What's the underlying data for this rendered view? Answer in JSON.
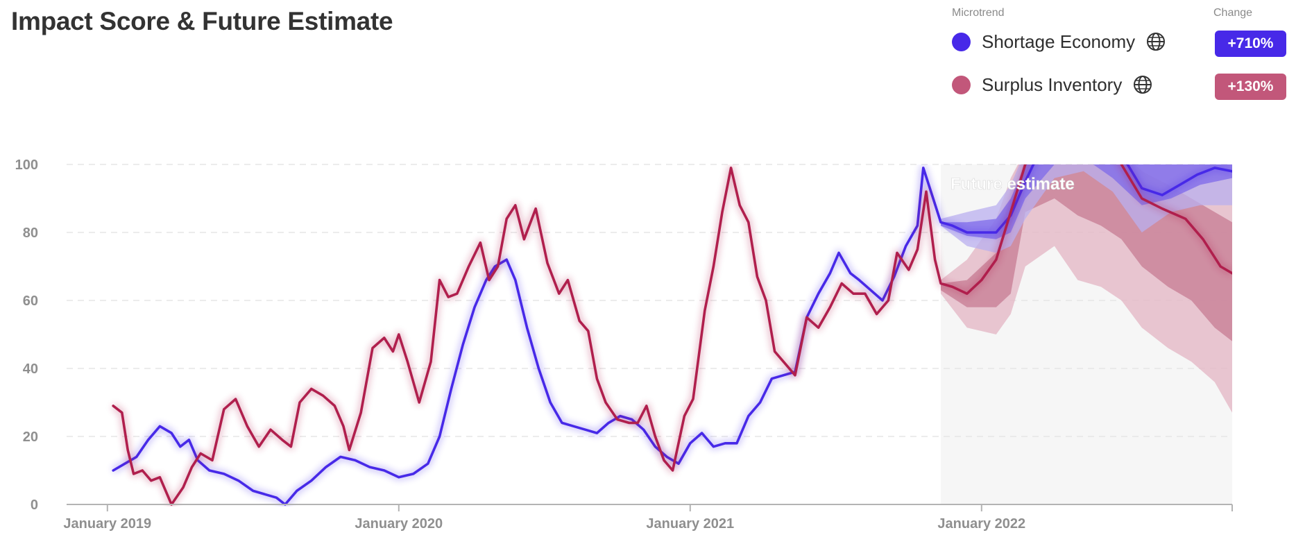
{
  "title": "Impact Score & Future Estimate",
  "legend": {
    "microtrend_header": "Microtrend",
    "change_header": "Change",
    "items": [
      {
        "label": "Shortage Economy",
        "change": "+710%",
        "color": "#4729e8",
        "badge_color": "#4729e8",
        "icon": "globe-icon"
      },
      {
        "label": "Surplus Inventory",
        "change": "+130%",
        "color": "#c2577a",
        "badge_color": "#c2577a",
        "icon": "globe-icon"
      }
    ]
  },
  "chart_data": {
    "type": "line",
    "title": "Impact Score & Future Estimate",
    "xlabel": "",
    "ylabel": "",
    "ylim": [
      0,
      100
    ],
    "yticks": [
      0,
      20,
      40,
      60,
      80,
      100
    ],
    "xticks": [
      {
        "label": "January 2019",
        "t": 2019.0
      },
      {
        "label": "January 2020",
        "t": 2020.0
      },
      {
        "label": "January 2021",
        "t": 2021.0
      },
      {
        "label": "January 2022",
        "t": 2022.0
      }
    ],
    "xlim": [
      2018.86,
      2022.86
    ],
    "grid": "horizontal dashed",
    "future_estimate": {
      "label": "Future estimate",
      "start": 2021.86,
      "end": 2022.86
    },
    "series": [
      {
        "name": "Shortage Economy",
        "color": "#4729e8",
        "points": [
          [
            2019.02,
            10
          ],
          [
            2019.06,
            12
          ],
          [
            2019.1,
            14
          ],
          [
            2019.14,
            19
          ],
          [
            2019.18,
            23
          ],
          [
            2019.22,
            21
          ],
          [
            2019.25,
            17
          ],
          [
            2019.28,
            19
          ],
          [
            2019.31,
            13
          ],
          [
            2019.35,
            10
          ],
          [
            2019.4,
            9
          ],
          [
            2019.45,
            7
          ],
          [
            2019.5,
            4
          ],
          [
            2019.54,
            3
          ],
          [
            2019.58,
            2
          ],
          [
            2019.61,
            0
          ],
          [
            2019.65,
            4
          ],
          [
            2019.7,
            7
          ],
          [
            2019.75,
            11
          ],
          [
            2019.8,
            14
          ],
          [
            2019.85,
            13
          ],
          [
            2019.9,
            11
          ],
          [
            2019.95,
            10
          ],
          [
            2020.0,
            8
          ],
          [
            2020.05,
            9
          ],
          [
            2020.1,
            12
          ],
          [
            2020.14,
            20
          ],
          [
            2020.18,
            34
          ],
          [
            2020.22,
            47
          ],
          [
            2020.26,
            58
          ],
          [
            2020.3,
            66
          ],
          [
            2020.33,
            70
          ],
          [
            2020.37,
            72
          ],
          [
            2020.4,
            66
          ],
          [
            2020.44,
            52
          ],
          [
            2020.48,
            40
          ],
          [
            2020.52,
            30
          ],
          [
            2020.56,
            24
          ],
          [
            2020.6,
            23
          ],
          [
            2020.64,
            22
          ],
          [
            2020.68,
            21
          ],
          [
            2020.72,
            24
          ],
          [
            2020.76,
            26
          ],
          [
            2020.8,
            25
          ],
          [
            2020.84,
            22
          ],
          [
            2020.88,
            17
          ],
          [
            2020.92,
            14
          ],
          [
            2020.96,
            12
          ],
          [
            2021.0,
            18
          ],
          [
            2021.04,
            21
          ],
          [
            2021.08,
            17
          ],
          [
            2021.12,
            18
          ],
          [
            2021.16,
            18
          ],
          [
            2021.2,
            26
          ],
          [
            2021.24,
            30
          ],
          [
            2021.28,
            37
          ],
          [
            2021.32,
            38
          ],
          [
            2021.36,
            39
          ],
          [
            2021.4,
            55
          ],
          [
            2021.44,
            62
          ],
          [
            2021.48,
            68
          ],
          [
            2021.51,
            74
          ],
          [
            2021.55,
            68
          ],
          [
            2021.58,
            66
          ],
          [
            2021.62,
            63
          ],
          [
            2021.66,
            60
          ],
          [
            2021.7,
            67
          ],
          [
            2021.74,
            76
          ],
          [
            2021.78,
            82
          ],
          [
            2021.8,
            99
          ],
          [
            2021.83,
            91
          ],
          [
            2021.86,
            83
          ],
          [
            2021.9,
            82
          ],
          [
            2021.95,
            80
          ],
          [
            2022.0,
            80
          ],
          [
            2022.05,
            80
          ],
          [
            2022.1,
            85
          ],
          [
            2022.15,
            95
          ],
          [
            2022.2,
            104
          ],
          [
            2022.3,
            105
          ],
          [
            2022.4,
            106
          ],
          [
            2022.48,
            103
          ],
          [
            2022.55,
            93
          ],
          [
            2022.62,
            91
          ],
          [
            2022.68,
            94
          ],
          [
            2022.74,
            97
          ],
          [
            2022.8,
            99
          ],
          [
            2022.86,
            98
          ]
        ]
      },
      {
        "name": "Surplus Inventory",
        "color": "#b01f4d",
        "points": [
          [
            2019.02,
            29
          ],
          [
            2019.05,
            27
          ],
          [
            2019.07,
            16
          ],
          [
            2019.09,
            9
          ],
          [
            2019.12,
            10
          ],
          [
            2019.15,
            7
          ],
          [
            2019.18,
            8
          ],
          [
            2019.22,
            0
          ],
          [
            2019.26,
            5
          ],
          [
            2019.29,
            11
          ],
          [
            2019.32,
            15
          ],
          [
            2019.36,
            13
          ],
          [
            2019.4,
            28
          ],
          [
            2019.44,
            31
          ],
          [
            2019.48,
            23
          ],
          [
            2019.52,
            17
          ],
          [
            2019.56,
            22
          ],
          [
            2019.6,
            19
          ],
          [
            2019.63,
            17
          ],
          [
            2019.66,
            30
          ],
          [
            2019.7,
            34
          ],
          [
            2019.74,
            32
          ],
          [
            2019.78,
            29
          ],
          [
            2019.81,
            23
          ],
          [
            2019.83,
            16
          ],
          [
            2019.87,
            27
          ],
          [
            2019.91,
            46
          ],
          [
            2019.95,
            49
          ],
          [
            2019.98,
            45
          ],
          [
            2020.0,
            50
          ],
          [
            2020.03,
            42
          ],
          [
            2020.07,
            30
          ],
          [
            2020.11,
            42
          ],
          [
            2020.14,
            66
          ],
          [
            2020.17,
            61
          ],
          [
            2020.2,
            62
          ],
          [
            2020.24,
            70
          ],
          [
            2020.28,
            77
          ],
          [
            2020.31,
            66
          ],
          [
            2020.34,
            70
          ],
          [
            2020.37,
            84
          ],
          [
            2020.4,
            88
          ],
          [
            2020.43,
            78
          ],
          [
            2020.47,
            87
          ],
          [
            2020.51,
            71
          ],
          [
            2020.55,
            62
          ],
          [
            2020.58,
            66
          ],
          [
            2020.62,
            54
          ],
          [
            2020.65,
            51
          ],
          [
            2020.68,
            37
          ],
          [
            2020.71,
            30
          ],
          [
            2020.75,
            25
          ],
          [
            2020.79,
            24
          ],
          [
            2020.82,
            24
          ],
          [
            2020.85,
            29
          ],
          [
            2020.88,
            20
          ],
          [
            2020.91,
            13
          ],
          [
            2020.94,
            10
          ],
          [
            2020.98,
            26
          ],
          [
            2021.01,
            31
          ],
          [
            2021.05,
            57
          ],
          [
            2021.08,
            70
          ],
          [
            2021.11,
            86
          ],
          [
            2021.14,
            99
          ],
          [
            2021.17,
            88
          ],
          [
            2021.2,
            83
          ],
          [
            2021.23,
            67
          ],
          [
            2021.26,
            60
          ],
          [
            2021.29,
            45
          ],
          [
            2021.33,
            41
          ],
          [
            2021.36,
            38
          ],
          [
            2021.4,
            55
          ],
          [
            2021.44,
            52
          ],
          [
            2021.48,
            58
          ],
          [
            2021.52,
            65
          ],
          [
            2021.56,
            62
          ],
          [
            2021.6,
            62
          ],
          [
            2021.64,
            56
          ],
          [
            2021.68,
            60
          ],
          [
            2021.71,
            74
          ],
          [
            2021.75,
            69
          ],
          [
            2021.78,
            75
          ],
          [
            2021.81,
            92
          ],
          [
            2021.84,
            72
          ],
          [
            2021.86,
            65
          ],
          [
            2021.9,
            64
          ],
          [
            2021.95,
            62
          ],
          [
            2022.0,
            66
          ],
          [
            2022.05,
            72
          ],
          [
            2022.1,
            86
          ],
          [
            2022.15,
            100
          ],
          [
            2022.2,
            110
          ],
          [
            2022.3,
            112
          ],
          [
            2022.4,
            110
          ],
          [
            2022.48,
            100
          ],
          [
            2022.55,
            90
          ],
          [
            2022.62,
            87
          ],
          [
            2022.7,
            84
          ],
          [
            2022.76,
            78
          ],
          [
            2022.82,
            70
          ],
          [
            2022.86,
            68
          ]
        ]
      }
    ],
    "forecast_bands": [
      {
        "series": "Surplus Inventory",
        "level": "outer",
        "color": "#e3b4c3",
        "points": [
          [
            2021.86,
            66,
            62
          ],
          [
            2021.95,
            72,
            52
          ],
          [
            2022.05,
            84,
            50
          ],
          [
            2022.1,
            96,
            56
          ],
          [
            2022.15,
            104,
            70
          ],
          [
            2022.25,
            104,
            76
          ],
          [
            2022.33,
            104,
            66
          ],
          [
            2022.41,
            104,
            64
          ],
          [
            2022.48,
            104,
            60
          ],
          [
            2022.55,
            104,
            52
          ],
          [
            2022.64,
            104,
            46
          ],
          [
            2022.72,
            104,
            42
          ],
          [
            2022.8,
            104,
            36
          ],
          [
            2022.86,
            104,
            27
          ]
        ]
      },
      {
        "series": "Surplus Inventory",
        "level": "inner",
        "color": "#c77b93",
        "points": [
          [
            2021.86,
            65,
            63
          ],
          [
            2021.95,
            66,
            58
          ],
          [
            2022.05,
            74,
            58
          ],
          [
            2022.1,
            88,
            62
          ],
          [
            2022.15,
            102,
            86
          ],
          [
            2022.25,
            104,
            90
          ],
          [
            2022.33,
            104,
            85
          ],
          [
            2022.41,
            104,
            82
          ],
          [
            2022.48,
            104,
            78
          ],
          [
            2022.55,
            98,
            70
          ],
          [
            2022.64,
            94,
            64
          ],
          [
            2022.72,
            90,
            60
          ],
          [
            2022.8,
            86,
            52
          ],
          [
            2022.86,
            83,
            48
          ]
        ]
      },
      {
        "series": "Shortage Economy",
        "level": "outer",
        "color": "#b9afef",
        "points": [
          [
            2021.86,
            84,
            82
          ],
          [
            2021.95,
            86,
            76
          ],
          [
            2022.05,
            88,
            74
          ],
          [
            2022.1,
            94,
            76
          ],
          [
            2022.15,
            104,
            84
          ],
          [
            2022.25,
            104,
            96
          ],
          [
            2022.35,
            104,
            98
          ],
          [
            2022.45,
            104,
            92
          ],
          [
            2022.55,
            104,
            80
          ],
          [
            2022.65,
            104,
            86
          ],
          [
            2022.75,
            104,
            88
          ],
          [
            2022.86,
            104,
            88
          ]
        ]
      },
      {
        "series": "Shortage Economy",
        "level": "inner",
        "color": "#7d69ea",
        "points": [
          [
            2021.86,
            83,
            82
          ],
          [
            2021.95,
            83,
            79
          ],
          [
            2022.05,
            84,
            78
          ],
          [
            2022.1,
            90,
            80
          ],
          [
            2022.15,
            100,
            90
          ],
          [
            2022.25,
            104,
            100
          ],
          [
            2022.35,
            104,
            102
          ],
          [
            2022.45,
            104,
            96
          ],
          [
            2022.55,
            104,
            88
          ],
          [
            2022.65,
            104,
            90
          ],
          [
            2022.75,
            104,
            94
          ],
          [
            2022.86,
            104,
            96
          ]
        ]
      }
    ]
  }
}
